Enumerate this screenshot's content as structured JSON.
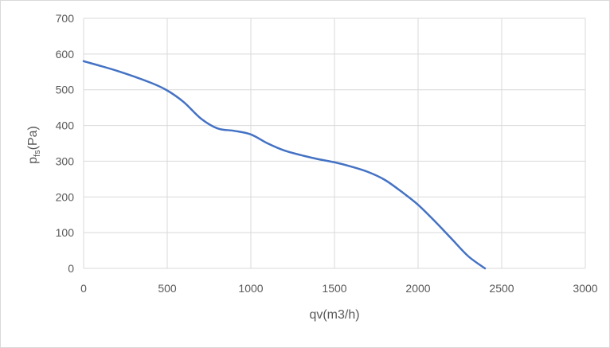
{
  "chart_data": {
    "type": "line",
    "xlabel": "qv(m3/h)",
    "ylabel": {
      "main": "p",
      "sub": "fs",
      "unit": "(Pa)"
    },
    "xlim": [
      0,
      3000
    ],
    "ylim": [
      0,
      700
    ],
    "xticks": [
      "0",
      "500",
      "1000",
      "1500",
      "2000",
      "2500",
      "3000"
    ],
    "yticks": [
      "0",
      "100",
      "200",
      "300",
      "400",
      "500",
      "600",
      "700"
    ],
    "grid": true,
    "legend": "none",
    "series": [
      {
        "color": "#4472c4",
        "x": [
          0,
          200,
          400,
          500,
          600,
          700,
          800,
          900,
          1000,
          1100,
          1200,
          1300,
          1400,
          1500,
          1600,
          1700,
          1800,
          1900,
          2000,
          2100,
          2200,
          2300,
          2400
        ],
        "y": [
          580,
          553,
          520,
          498,
          465,
          420,
          392,
          385,
          375,
          350,
          330,
          317,
          306,
          297,
          285,
          270,
          248,
          215,
          178,
          132,
          83,
          34,
          0
        ]
      }
    ]
  }
}
